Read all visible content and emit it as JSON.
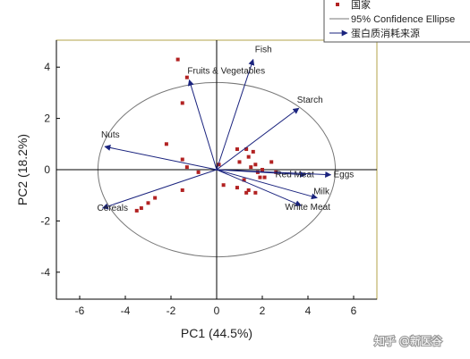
{
  "chart_data": {
    "type": "scatter",
    "subtype": "pca-biplot",
    "xlabel": "PC1 (44.5%)",
    "ylabel": "PC2 (18.2%)",
    "xlim": [
      -6.5,
      7
    ],
    "ylim": [
      -5,
      5
    ],
    "x_ticks": [
      -6,
      -4,
      -2,
      0,
      2,
      4,
      6
    ],
    "y_ticks": [
      -4,
      -2,
      0,
      2,
      4
    ],
    "grid": false,
    "reference_lines": "x=0, y=0",
    "legend": {
      "placement": "top-right",
      "entries": [
        {
          "label": "国家",
          "marker": "square",
          "color": "#b22222"
        },
        {
          "label": "95% Confidence Ellipse",
          "marker": "line",
          "color": "#777777"
        },
        {
          "label": "蛋白质消耗来源",
          "marker": "arrow",
          "color": "#1a237e"
        }
      ]
    },
    "ellipse": {
      "name": "95% Confidence Ellipse",
      "center": [
        0,
        0
      ],
      "rx": 5.2,
      "ry": 3.4
    },
    "points": {
      "name": "国家",
      "color": "#b22222",
      "x": [
        -1.7,
        -1.3,
        -1.5,
        -2.2,
        -1.5,
        -0.8,
        -1.5,
        -2.7,
        -3.0,
        -3.3,
        -3.5,
        -1.3,
        0.9,
        1.3,
        1.6,
        1.4,
        1.5,
        1.8,
        2.0,
        2.4,
        1.9,
        1.2,
        0.3,
        0.9,
        1.4,
        1.3,
        1.7,
        2.1,
        1.7,
        2.6,
        1.0,
        0.1
      ],
      "y": [
        4.3,
        3.6,
        2.6,
        1.0,
        0.4,
        -0.1,
        -0.8,
        -1.1,
        -1.3,
        -1.5,
        -1.6,
        0.1,
        0.8,
        0.8,
        0.7,
        0.5,
        0.1,
        -0.1,
        0.0,
        0.3,
        -0.3,
        -0.4,
        -0.6,
        -0.7,
        -0.8,
        -0.9,
        -0.9,
        -0.3,
        0.2,
        -0.1,
        0.3,
        0.2
      ]
    },
    "loadings": {
      "name": "蛋白质消耗来源",
      "color": "#1a237e",
      "vectors": [
        {
          "label": "Fish",
          "x": 1.6,
          "y": 4.3
        },
        {
          "label": "Fruits & Vegetables",
          "x": -1.2,
          "y": 3.5
        },
        {
          "label": "Starch",
          "x": 3.6,
          "y": 2.4
        },
        {
          "label": "Nuts",
          "x": -4.9,
          "y": 0.9
        },
        {
          "label": "Red Meat",
          "x": 3.9,
          "y": -0.2
        },
        {
          "label": "Eggs",
          "x": 5.0,
          "y": -0.2
        },
        {
          "label": "Milk",
          "x": 4.4,
          "y": -1.1
        },
        {
          "label": "White Meat",
          "x": 3.7,
          "y": -1.4
        },
        {
          "label": "Cereals",
          "x": -5.0,
          "y": -1.5
        }
      ]
    }
  },
  "watermark": "知乎 @新医谷"
}
